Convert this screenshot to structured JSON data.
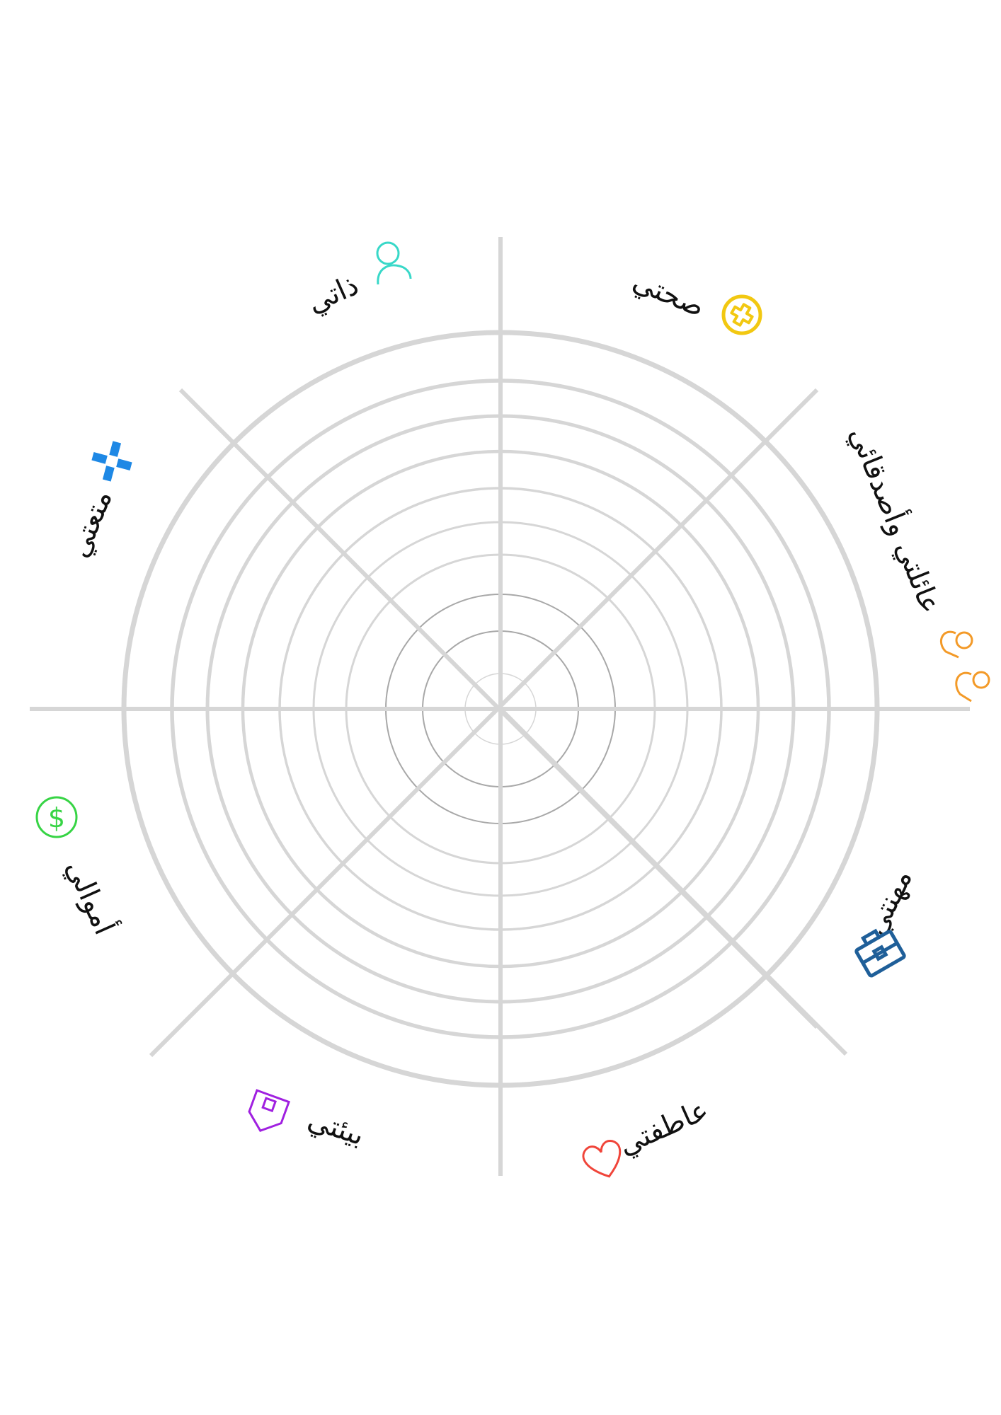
{
  "wheel": {
    "ring_count": 10,
    "spoke_count": 8,
    "colors": {
      "grid": "#d6d6d6",
      "inner_ring": "#a8a8a8",
      "text": "#111111"
    }
  },
  "segments": [
    {
      "label": "صحتي",
      "icon": "health-cross-icon",
      "color": "#f2c811"
    },
    {
      "label": "عائلتي وأصدقائي",
      "icon": "people-icon",
      "color": "#f39a28"
    },
    {
      "label": "مهنتي",
      "icon": "briefcase-icon",
      "color": "#1f5f99"
    },
    {
      "label": "عاطفتي",
      "icon": "heart-icon",
      "color": "#f0453a"
    },
    {
      "label": "بيئتي",
      "icon": "house-icon",
      "color": "#a020e0"
    },
    {
      "label": "أموالي",
      "icon": "dollar-icon",
      "color": "#37d445"
    },
    {
      "label": "متعتي",
      "icon": "pinwheel-icon",
      "color": "#1e88e5"
    },
    {
      "label": "ذاتي",
      "icon": "person-icon",
      "color": "#38d8c8"
    }
  ]
}
